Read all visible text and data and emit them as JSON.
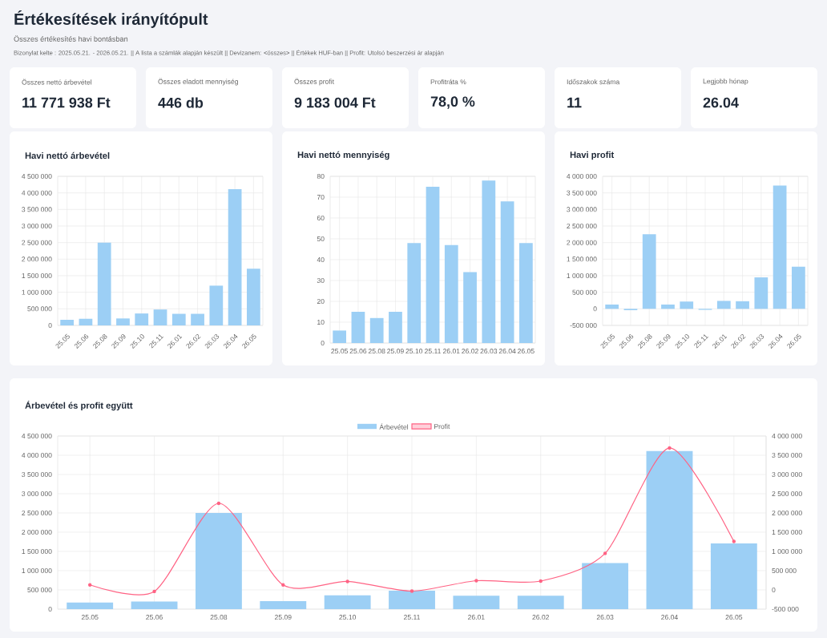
{
  "chart_data": [
    {
      "type": "other",
      "title": "Értékesítések irányítópult",
      "subtitle": "Összes értékesítés havi bontásban",
      "annotations": [
        "Bizonylat kelte : 2025.05.21. - 2026.05.21. || A lista a számlák alapján készült || Devizanem: <összes> || Értékek HUF-ban || Profit: Utolsó beszerzési ár alapján"
      ],
      "categories": [
        "Összes nettó árbevétel",
        "Összes eladott mennyiség",
        "Összes profit",
        "Profitráta %",
        "Időszakok száma",
        "Legjobb hónap"
      ],
      "value_labels": [
        "11 771 938 Ft",
        "446 db",
        "9 183 004 Ft",
        "78,0 %",
        "11",
        "26.04"
      ]
    },
    {
      "type": "bar",
      "title": "Havi nettó árbevétel",
      "categories": [
        "25.05",
        "25.06",
        "25.08",
        "25.09",
        "25.10",
        "25.11",
        "26.01",
        "26.02",
        "26.03",
        "26.04",
        "26.05"
      ],
      "values": [
        170000,
        200000,
        2500000,
        210000,
        360000,
        480000,
        350000,
        350000,
        1200000,
        4110000,
        1710000
      ],
      "color": "#9ccff5",
      "ylim": [
        0,
        4500000
      ],
      "yticks": [
        0,
        {
          "value": 500000,
          "label": "500 000"
        },
        {
          "value": 1000000,
          "label": "1 000 000"
        },
        {
          "value": 1500000,
          "label": "1 500 000"
        },
        {
          "value": 2000000,
          "label": "2 000 000"
        },
        {
          "value": 2500000,
          "label": "2 500 000"
        },
        {
          "value": 3000000,
          "label": "3 000 000"
        },
        {
          "value": 3500000,
          "label": "3 500 000"
        },
        {
          "value": 4000000,
          "label": "4 000 000"
        },
        {
          "value": 4500000,
          "label": "4 500 000"
        }
      ],
      "grid": true
    },
    {
      "type": "bar",
      "title": "Havi nettó mennyiség",
      "categories": [
        "25.05",
        "25.06",
        "25.08",
        "25.09",
        "25.10",
        "25.11",
        "26.01",
        "26.02",
        "26.03",
        "26.04",
        "26.05"
      ],
      "values": [
        6,
        15,
        12,
        15,
        48,
        75,
        47,
        34,
        78,
        68,
        48
      ],
      "color": "#9ccff5",
      "ylim": [
        0,
        80
      ],
      "yticks": [
        0,
        10,
        20,
        30,
        40,
        50,
        60,
        70,
        80
      ],
      "grid": true
    },
    {
      "type": "bar",
      "title": "Havi profit",
      "categories": [
        "25.05",
        "25.06",
        "25.08",
        "25.09",
        "25.10",
        "25.11",
        "26.01",
        "26.02",
        "26.03",
        "26.04",
        "26.05"
      ],
      "values": [
        130000,
        -40000,
        2250000,
        130000,
        220000,
        -30000,
        240000,
        230000,
        950000,
        3720000,
        1270000
      ],
      "color": "#9ccff5",
      "ylim": [
        -500000,
        4000000
      ],
      "yticks": [
        {
          "value": -500000,
          "label": "-500 000"
        },
        0,
        {
          "value": 500000,
          "label": "500 000"
        },
        {
          "value": 1000000,
          "label": "1 000 000"
        },
        {
          "value": 1500000,
          "label": "1 500 000"
        },
        {
          "value": 2000000,
          "label": "2 000 000"
        },
        {
          "value": 2500000,
          "label": "2 500 000"
        },
        {
          "value": 3000000,
          "label": "3 000 000"
        },
        {
          "value": 3500000,
          "label": "3 500 000"
        },
        {
          "value": 4000000,
          "label": "4 000 000"
        }
      ],
      "grid": true
    },
    {
      "type": "bar",
      "title": "Árbevétel és profit együtt",
      "categories": [
        "25.05",
        "25.06",
        "25.08",
        "25.09",
        "25.10",
        "25.11",
        "26.01",
        "26.02",
        "26.03",
        "26.04",
        "26.05"
      ],
      "series": [
        {
          "name": "Árbevétel",
          "color": "#9ccff5",
          "values": [
            170000,
            200000,
            2500000,
            210000,
            360000,
            480000,
            350000,
            350000,
            1200000,
            4110000,
            1710000
          ]
        },
        {
          "name": "Profit",
          "type": "line",
          "axis": "y2",
          "color": "#ff6384",
          "marker": "circle",
          "values": [
            130000,
            -40000,
            2250000,
            130000,
            220000,
            -30000,
            240000,
            230000,
            950000,
            3690000,
            1260000
          ]
        }
      ],
      "ylim": [
        0,
        4500000
      ],
      "yticks": [
        0,
        {
          "value": 500000,
          "label": "500 000"
        },
        {
          "value": 1000000,
          "label": "1 000 000"
        },
        {
          "value": 1500000,
          "label": "1 500 000"
        },
        {
          "value": 2000000,
          "label": "2 000 000"
        },
        {
          "value": 2500000,
          "label": "2 500 000"
        },
        {
          "value": 3000000,
          "label": "3 000 000"
        },
        {
          "value": 3500000,
          "label": "3 500 000"
        },
        {
          "value": 4000000,
          "label": "4 000 000"
        },
        {
          "value": 4500000,
          "label": "4 500 000"
        }
      ],
      "y2lim": [
        -500000,
        4000000
      ],
      "y2ticks": [
        {
          "value": -500000,
          "label": "-500 000"
        },
        0,
        {
          "value": 500000,
          "label": "500 000"
        },
        {
          "value": 1000000,
          "label": "1 000 000"
        },
        {
          "value": 1500000,
          "label": "1 500 000"
        },
        {
          "value": 2000000,
          "label": "2 000 000"
        },
        {
          "value": 2500000,
          "label": "2 500 000"
        },
        {
          "value": 3000000,
          "label": "3 000 000"
        },
        {
          "value": 3500000,
          "label": "3 500 000"
        },
        {
          "value": 4000000,
          "label": "4 000 000"
        }
      ],
      "grid": true,
      "legend": "top"
    }
  ]
}
